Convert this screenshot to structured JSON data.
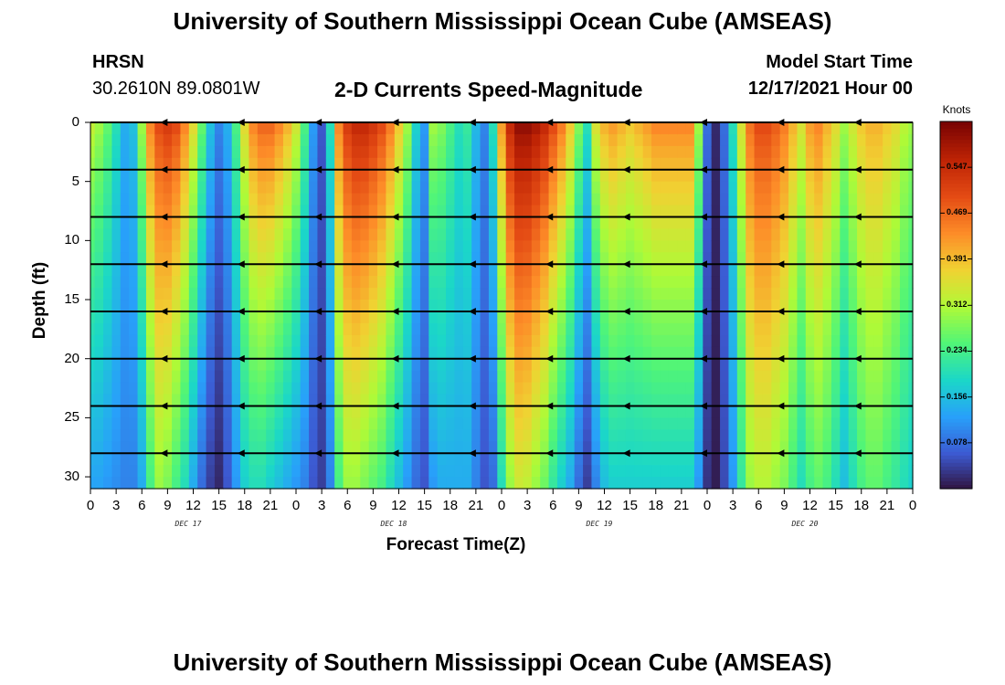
{
  "title": "University of Southern Mississippi Ocean Cube (AMSEAS)",
  "footer_title": "University of Southern Mississippi Ocean Cube (AMSEAS)",
  "station": {
    "name": "HRSN",
    "coords": "30.2610N  89.0801W"
  },
  "subtitle": "2-D Currents Speed-Magnitude",
  "model_start": {
    "label": "Model Start Time",
    "value": "12/17/2021 Hour 00"
  },
  "chart_data": {
    "type": "heatmap",
    "xlabel": "Forecast Time(Z)",
    "ylabel": "Depth (ft)",
    "x_range_hours": [
      0,
      96
    ],
    "ylim": [
      0,
      31
    ],
    "y_ticks": [
      0,
      5,
      10,
      15,
      20,
      25,
      30
    ],
    "x_tick_labels": [
      "0",
      "3",
      "6",
      "9",
      "12",
      "15",
      "18",
      "21",
      "0",
      "3",
      "6",
      "9",
      "12",
      "15",
      "18",
      "21",
      "0",
      "3",
      "6",
      "9",
      "12",
      "15",
      "18",
      "21",
      "0",
      "3",
      "6",
      "9",
      "12",
      "15",
      "18",
      "21",
      "0"
    ],
    "date_labels": [
      {
        "text": "DEC 17",
        "hour": 12
      },
      {
        "text": "DEC 18",
        "hour": 36
      },
      {
        "text": "DEC 19",
        "hour": 60
      },
      {
        "text": "DEC 20",
        "hour": 84
      }
    ],
    "colorbar": {
      "unit": "Knots",
      "range": [
        0,
        0.625
      ],
      "ticks": [
        "0.547",
        "0.469",
        "0.391",
        "0.312",
        "0.234",
        "0.156",
        "0.078"
      ],
      "tick_values": [
        0.547,
        0.469,
        0.391,
        0.312,
        0.234,
        0.156,
        0.078
      ]
    },
    "speed_profile": {
      "hours": [
        0,
        1,
        2,
        3,
        4,
        5,
        6,
        7,
        8,
        9,
        10,
        11,
        12,
        13,
        14,
        15,
        16,
        17,
        18,
        19,
        20,
        21,
        22,
        23,
        24,
        25,
        26,
        27,
        28,
        29,
        30,
        31,
        32,
        33,
        34,
        35,
        36,
        37,
        38,
        39,
        40,
        41,
        42,
        43,
        44,
        45,
        46,
        47,
        48,
        49,
        50,
        51,
        52,
        53,
        54,
        55,
        56,
        57,
        58,
        59,
        60,
        61,
        62,
        63,
        64,
        65,
        66,
        67,
        68,
        69,
        70,
        71,
        72,
        73,
        74,
        75,
        76,
        77,
        78,
        79,
        80,
        81,
        82,
        83,
        84,
        85,
        86,
        87,
        88,
        89,
        90,
        91,
        92,
        93,
        94,
        95,
        96
      ],
      "surface": [
        0.33,
        0.3,
        0.26,
        0.2,
        0.14,
        0.16,
        0.3,
        0.44,
        0.5,
        0.52,
        0.5,
        0.44,
        0.36,
        0.26,
        0.16,
        0.1,
        0.14,
        0.24,
        0.36,
        0.44,
        0.47,
        0.47,
        0.44,
        0.4,
        0.34,
        0.24,
        0.12,
        0.06,
        0.2,
        0.44,
        0.52,
        0.55,
        0.55,
        0.53,
        0.5,
        0.45,
        0.38,
        0.3,
        0.18,
        0.12,
        0.3,
        0.28,
        0.24,
        0.2,
        0.22,
        0.15,
        0.1,
        0.2,
        0.42,
        0.55,
        0.6,
        0.6,
        0.58,
        0.55,
        0.5,
        0.45,
        0.38,
        0.28,
        0.2,
        0.35,
        0.4,
        0.42,
        0.4,
        0.38,
        0.4,
        0.42,
        0.44,
        0.44,
        0.44,
        0.44,
        0.44,
        0.3,
        0.08,
        0.02,
        0.08,
        0.2,
        0.35,
        0.46,
        0.5,
        0.5,
        0.48,
        0.45,
        0.4,
        0.35,
        0.42,
        0.44,
        0.4,
        0.36,
        0.3,
        0.34,
        0.38,
        0.4,
        0.4,
        0.38,
        0.36,
        0.32,
        0.3
      ],
      "bottom": [
        0.13,
        0.13,
        0.12,
        0.11,
        0.1,
        0.1,
        0.14,
        0.24,
        0.3,
        0.28,
        0.24,
        0.2,
        0.14,
        0.08,
        0.04,
        0.02,
        0.06,
        0.12,
        0.18,
        0.2,
        0.2,
        0.18,
        0.16,
        0.14,
        0.12,
        0.1,
        0.06,
        0.04,
        0.1,
        0.24,
        0.3,
        0.3,
        0.28,
        0.26,
        0.24,
        0.2,
        0.16,
        0.12,
        0.08,
        0.06,
        0.12,
        0.14,
        0.14,
        0.14,
        0.14,
        0.1,
        0.06,
        0.08,
        0.2,
        0.3,
        0.34,
        0.33,
        0.3,
        0.27,
        0.22,
        0.18,
        0.14,
        0.08,
        0.04,
        0.1,
        0.16,
        0.18,
        0.18,
        0.18,
        0.18,
        0.18,
        0.18,
        0.18,
        0.18,
        0.18,
        0.18,
        0.12,
        0.03,
        0.01,
        0.05,
        0.12,
        0.22,
        0.3,
        0.32,
        0.32,
        0.3,
        0.28,
        0.24,
        0.2,
        0.24,
        0.26,
        0.24,
        0.2,
        0.16,
        0.2,
        0.24,
        0.26,
        0.26,
        0.24,
        0.22,
        0.2,
        0.18
      ]
    },
    "vector_depths_ft": [
      0,
      4,
      8,
      12,
      16,
      20,
      24,
      28
    ],
    "vector_hours": [
      0,
      9,
      18,
      27,
      36,
      45,
      54,
      63,
      72,
      81,
      90,
      96
    ]
  },
  "colors": {
    "accent_dark": "#7a0403",
    "accent_light": "#30123b"
  }
}
